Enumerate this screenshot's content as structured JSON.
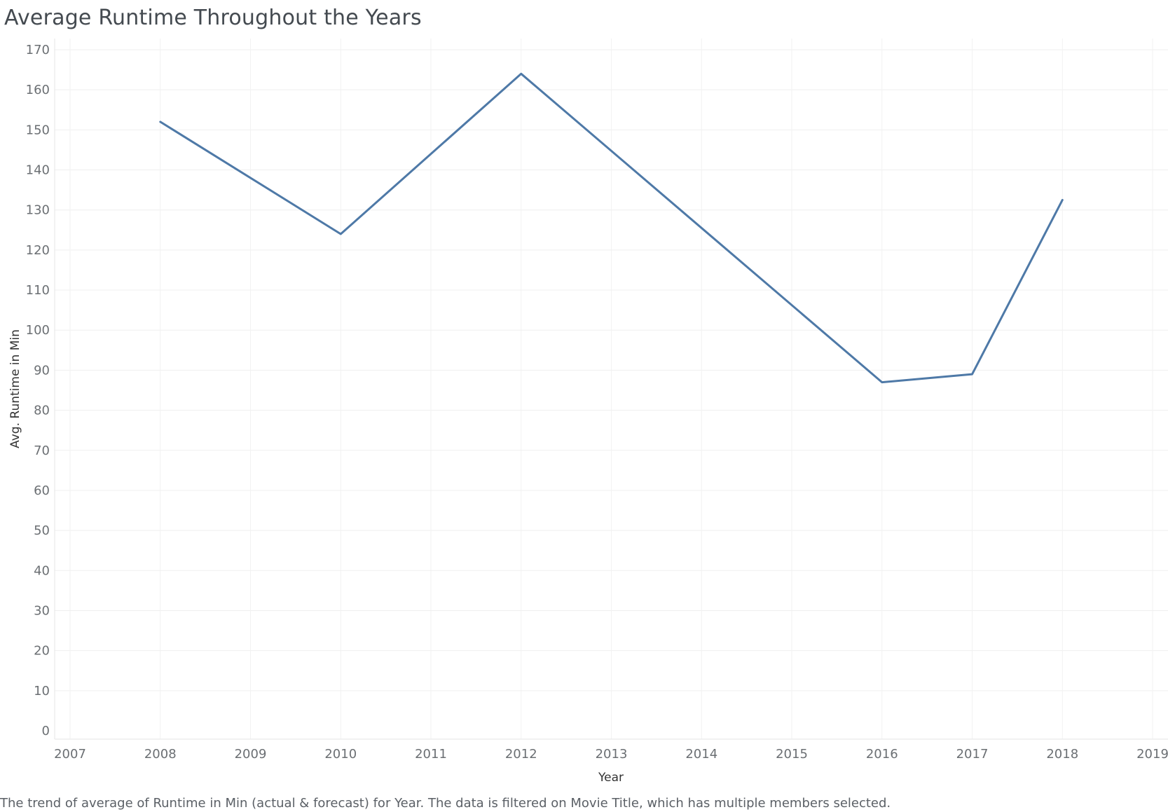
{
  "chart_data": {
    "type": "line",
    "title": "Average Runtime Throughout the Years",
    "xlabel": "Year",
    "ylabel": "Avg. Runtime in Min",
    "caption": "The trend of average of Runtime in Min (actual & forecast)  for Year. The data is filtered on Movie Title, which has multiple members selected.",
    "x_ticks": [
      2007,
      2008,
      2009,
      2010,
      2011,
      2012,
      2013,
      2014,
      2015,
      2016,
      2017,
      2018,
      2019
    ],
    "y_ticks": [
      0,
      10,
      20,
      30,
      40,
      50,
      60,
      70,
      80,
      90,
      100,
      110,
      120,
      130,
      140,
      150,
      160,
      170
    ],
    "xlim": [
      2007,
      2019
    ],
    "ylim": [
      0,
      170
    ],
    "grid": true,
    "series": [
      {
        "x": [
          2008,
          2010,
          2012,
          2016,
          2017,
          2018
        ],
        "y": [
          152,
          124,
          164,
          87,
          89,
          132.5
        ]
      }
    ],
    "line_color": "#4e79a7"
  }
}
